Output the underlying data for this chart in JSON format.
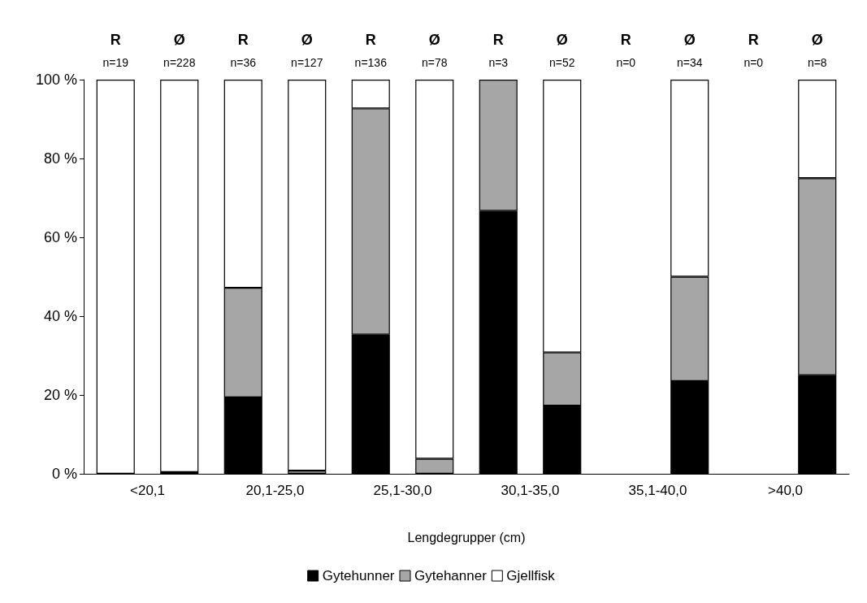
{
  "chart_data": {
    "type": "bar",
    "stacked": true,
    "xlabel": "Lengdegrupper (cm)",
    "categories": [
      "R",
      "Ø",
      "R",
      "Ø",
      "R",
      "Ø",
      "R",
      "Ø",
      "R",
      "Ø",
      "R",
      "Ø"
    ],
    "annotations": [
      "n=19",
      "n=228",
      "n=36",
      "n=127",
      "n=136",
      "n=78",
      "n=3",
      "n=52",
      "n=0",
      "n=34",
      "n=0",
      "n=8",
      "<20,1",
      "20,1-25,0",
      "25,1-30,0",
      "30,1-35,0",
      "35,1-40,0",
      ">40,0"
    ],
    "series": [
      {
        "name": "Gytehunner",
        "color": "#000000",
        "values": [
          0,
          0.4,
          19.4,
          0,
          35.3,
          0,
          66.7,
          17.3,
          null,
          23.5,
          null,
          25
        ]
      },
      {
        "name": "Gytehanner",
        "color": "#a6a6a6",
        "values": [
          0,
          0,
          27.8,
          0.8,
          57.4,
          3.8,
          33.3,
          13.5,
          null,
          26.5,
          null,
          50
        ]
      },
      {
        "name": "Gjellfisk",
        "color": "#ffffff",
        "values": [
          100,
          99.6,
          52.8,
          99.2,
          7.3,
          96.2,
          0,
          69.2,
          null,
          50,
          null,
          25
        ]
      }
    ],
    "ylim": [
      0,
      100
    ],
    "yticks": [
      {
        "value": 0,
        "label": "0 %"
      },
      {
        "value": 20,
        "label": "20 %"
      },
      {
        "value": 40,
        "label": "40 %"
      },
      {
        "value": 60,
        "label": "60 %"
      },
      {
        "value": 80,
        "label": "80 %"
      },
      {
        "value": 100,
        "label": "100 %"
      }
    ],
    "legend": "bottom",
    "grid": false
  }
}
